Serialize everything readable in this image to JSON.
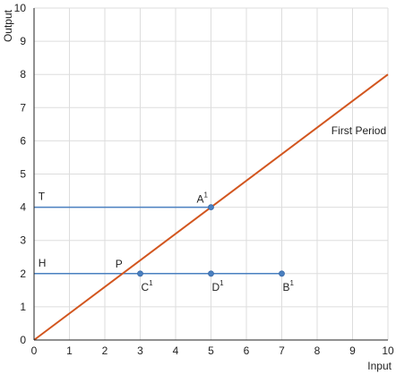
{
  "chart_data": {
    "type": "line",
    "xlabel": "Input",
    "ylabel": "Output",
    "xlim": [
      0,
      10
    ],
    "ylim": [
      0,
      10
    ],
    "xticks": [
      "0",
      "1",
      "2",
      "3",
      "4",
      "5",
      "6",
      "7",
      "8",
      "9",
      "10"
    ],
    "yticks": [
      "0",
      "1",
      "2",
      "3",
      "4",
      "5",
      "6",
      "7",
      "8",
      "9",
      "10"
    ],
    "grid": true,
    "colors": {
      "diagonal": "#d2561f",
      "horizontal": "#4a80c0",
      "grid": "#dddddd",
      "axis": "#222222"
    },
    "series": [
      {
        "name": "First Period",
        "x": [
          0,
          10
        ],
        "y": [
          0,
          8
        ]
      }
    ],
    "horizontal_lines": [
      {
        "label": "T",
        "y": 4,
        "x": [
          0,
          5
        ]
      },
      {
        "label": "H",
        "y": 2,
        "x": [
          0,
          7
        ]
      }
    ],
    "points": [
      {
        "label": "A",
        "sup": "1",
        "x": 5,
        "y": 4
      },
      {
        "label": "C",
        "sup": "1",
        "x": 3,
        "y": 2
      },
      {
        "label": "D",
        "sup": "1",
        "x": 5,
        "y": 2
      },
      {
        "label": "B",
        "sup": "1",
        "x": 7,
        "y": 2
      }
    ],
    "annotations": [
      {
        "text": "P",
        "x": 2.5,
        "y": 2
      }
    ]
  }
}
